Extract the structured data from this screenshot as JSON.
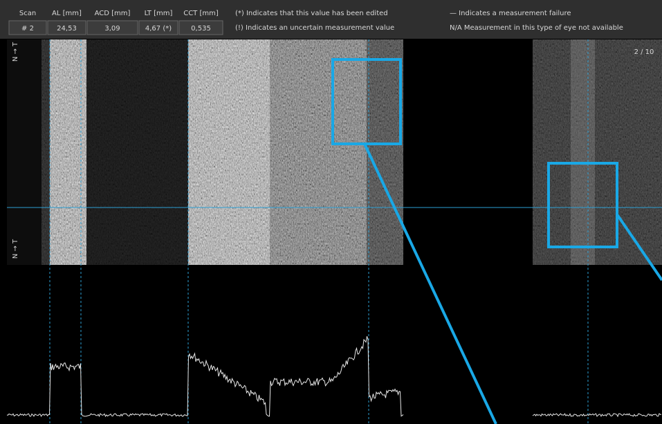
{
  "header": {
    "table": {
      "columns": [
        "Scan",
        "AL [mm]",
        "ACD [mm]",
        "LT [mm]",
        "CCT [mm]"
      ],
      "rows": [
        [
          "# 2",
          "24,53",
          "3,09",
          "4,67 (*)",
          "0,535"
        ]
      ]
    },
    "legend": [
      "(*) Indicates that this value has been edited",
      "(!)  Indicates an uncertain measurement value",
      "—  Indicates a measurement failure",
      "N/A Measurement in this type of eye not available"
    ]
  },
  "scan_counter": "2 / 10",
  "axis_labels": [
    "N → T",
    "N → T"
  ]
}
